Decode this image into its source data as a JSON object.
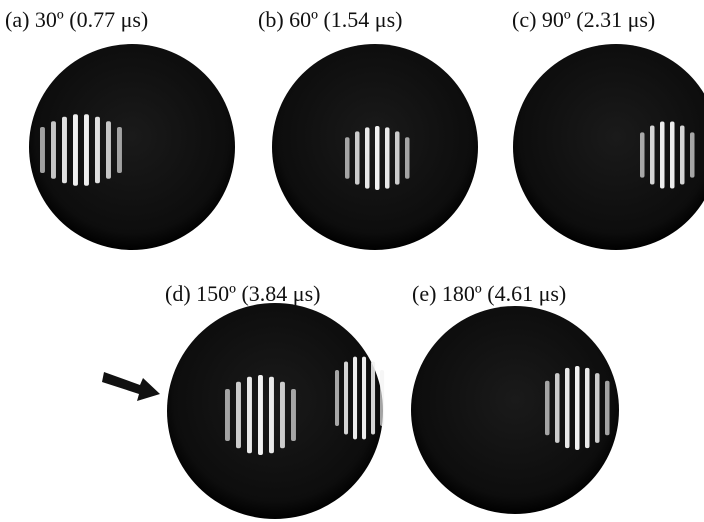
{
  "panels": [
    {
      "label": "(a) 30º (0.77 μs)"
    },
    {
      "label": "(b) 60º (1.54 μs)"
    },
    {
      "label": "(c) 90º (2.31 μs)"
    },
    {
      "label": "(d) 150º (3.84 μs)"
    },
    {
      "label": "(e) 180º (4.61 μs)"
    }
  ]
}
